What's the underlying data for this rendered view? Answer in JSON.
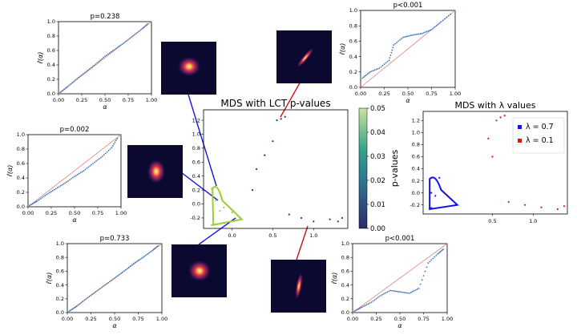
{
  "chart_data": [
    {
      "id": "pp_top_left",
      "type": "scatter",
      "title": "p=0.238",
      "xlabel": "α",
      "ylabel": "r̂(α)",
      "xlim": [
        0,
        1
      ],
      "ylim": [
        0,
        1
      ],
      "xticks": [
        "0.00",
        "0.25",
        "0.50",
        "0.75",
        "1.00"
      ],
      "yticks": [
        "0.0",
        "0.2",
        "0.4",
        "0.6",
        "0.8",
        "1.0"
      ],
      "series": [
        {
          "color": "#3b6fb5",
          "x": [
            0.02,
            0.1,
            0.2,
            0.3,
            0.4,
            0.5,
            0.6,
            0.7,
            0.8,
            0.9,
            0.97
          ],
          "y": [
            0.02,
            0.1,
            0.21,
            0.31,
            0.41,
            0.52,
            0.61,
            0.7,
            0.8,
            0.9,
            0.98
          ]
        }
      ]
    },
    {
      "id": "pp_mid_left",
      "type": "scatter",
      "title": "p=0.002",
      "xlabel": "α",
      "ylabel": "r̂(α)",
      "xlim": [
        0,
        1
      ],
      "ylim": [
        0,
        1
      ],
      "xticks": [
        "0.00",
        "0.25",
        "0.50",
        "0.75",
        "1.00"
      ],
      "yticks": [
        "0.0",
        "0.2",
        "0.4",
        "0.6",
        "0.8",
        "1.0"
      ],
      "series": [
        {
          "color": "#3b6fb5",
          "x": [
            0.02,
            0.1,
            0.2,
            0.3,
            0.4,
            0.5,
            0.6,
            0.7,
            0.8,
            0.9,
            0.97
          ],
          "y": [
            0.02,
            0.08,
            0.17,
            0.25,
            0.33,
            0.42,
            0.5,
            0.6,
            0.7,
            0.82,
            0.97
          ]
        }
      ]
    },
    {
      "id": "pp_bottom_left",
      "type": "scatter",
      "title": "p=0.733",
      "xlabel": "α",
      "ylabel": "r̂(α)",
      "xlim": [
        0,
        1
      ],
      "ylim": [
        0,
        1
      ],
      "xticks": [
        "0.00",
        "0.25",
        "0.50",
        "0.75",
        "1.00"
      ],
      "yticks": [
        "0.0",
        "0.2",
        "0.4",
        "0.6",
        "0.8",
        "1.0"
      ],
      "series": [
        {
          "color": "#3b6fb5",
          "x": [
            0.02,
            0.1,
            0.2,
            0.3,
            0.4,
            0.5,
            0.6,
            0.7,
            0.8,
            0.9,
            0.97
          ],
          "y": [
            0.02,
            0.09,
            0.2,
            0.3,
            0.4,
            0.5,
            0.6,
            0.71,
            0.8,
            0.9,
            0.98
          ]
        }
      ]
    },
    {
      "id": "pp_top_right",
      "type": "scatter",
      "title": "p<0.001",
      "xlabel": "α",
      "ylabel": "r̂(α)",
      "xlim": [
        0,
        1
      ],
      "ylim": [
        0,
        1
      ],
      "xticks": [
        "0.00",
        "0.25",
        "0.50",
        "0.75",
        "1.00"
      ],
      "yticks": [
        "0.0",
        "0.2",
        "0.4",
        "0.6",
        "0.8",
        "1.0"
      ],
      "series": [
        {
          "color": "#3b6fb5",
          "x": [
            0.02,
            0.1,
            0.2,
            0.3,
            0.35,
            0.45,
            0.55,
            0.65,
            0.75,
            0.85,
            0.97
          ],
          "y": [
            0.12,
            0.2,
            0.25,
            0.35,
            0.55,
            0.65,
            0.68,
            0.7,
            0.75,
            0.85,
            0.97
          ]
        }
      ]
    },
    {
      "id": "pp_bottom_right",
      "type": "scatter",
      "title": "p<0.001",
      "xlabel": "α",
      "ylabel": "r̂(α)",
      "xlim": [
        0,
        1
      ],
      "ylim": [
        0,
        1
      ],
      "xticks": [
        "0.00",
        "0.25",
        "0.50",
        "0.75",
        "1.00"
      ],
      "yticks": [
        "0.0",
        "0.2",
        "0.4",
        "0.6",
        "0.8",
        "1.0"
      ],
      "series": [
        {
          "color": "#3b6fb5",
          "x": [
            0.02,
            0.1,
            0.2,
            0.3,
            0.4,
            0.5,
            0.6,
            0.7,
            0.8,
            0.9,
            0.97
          ],
          "y": [
            0.02,
            0.08,
            0.15,
            0.25,
            0.32,
            0.3,
            0.28,
            0.35,
            0.72,
            0.85,
            0.93
          ]
        }
      ]
    },
    {
      "id": "mds_lct",
      "type": "scatter",
      "title": "MDS with LCT p-values",
      "xlim": [
        -0.35,
        1.42
      ],
      "ylim": [
        -0.35,
        1.35
      ],
      "xticks": [
        "0.0",
        "0.5",
        "1.0"
      ],
      "yticks": [
        "-0.2",
        "0.0",
        "0.2",
        "0.4",
        "0.6",
        "0.8",
        "1.0",
        "1.2"
      ],
      "colorbar": {
        "label": "p-values",
        "ticks": [
          "0.00",
          "0.01",
          "0.02",
          "0.03",
          "0.04",
          "0.05"
        ],
        "range": [
          0,
          0.05
        ]
      },
      "series": [
        {
          "color": "#9acd32",
          "x": [
            -0.25,
            -0.2,
            -0.1,
            0.0,
            0.1,
            -0.15,
            -0.25
          ],
          "y": [
            0.22,
            0.05,
            -0.05,
            -0.12,
            -0.2,
            -0.1,
            -0.3
          ]
        },
        {
          "color": "#2b2f6b",
          "x": [
            0.55,
            0.6,
            0.65,
            0.5,
            0.4,
            0.3,
            0.25,
            0.7,
            0.85,
            1.0,
            1.2,
            1.35,
            1.3
          ],
          "y": [
            1.2,
            1.22,
            1.25,
            0.9,
            0.7,
            0.5,
            0.2,
            -0.15,
            -0.2,
            -0.25,
            -0.22,
            -0.2,
            -0.25
          ]
        }
      ]
    },
    {
      "id": "mds_lambda",
      "type": "scatter",
      "title": "MDS with λ values",
      "xlim": [
        -0.35,
        1.42
      ],
      "ylim": [
        -0.35,
        1.35
      ],
      "xticks": [
        "0.5",
        "1.0"
      ],
      "yticks": [
        "-0.2",
        "0.0",
        "0.2",
        "0.4",
        "0.6",
        "0.8",
        "1.0",
        "1.2"
      ],
      "legend": {
        "placement": "top-right",
        "entries": [
          "λ = 0.7",
          "λ = 0.1"
        ]
      },
      "series": [
        {
          "name": "λ = 0.7",
          "color": "#1414e0",
          "x": [
            -0.25,
            -0.15,
            0.05,
            -0.2,
            -0.25
          ],
          "y": [
            0.0,
            0.25,
            -0.2,
            -0.05,
            -0.25
          ]
        },
        {
          "name": "λ = 0.1",
          "color": "#e01414",
          "x": [
            0.55,
            0.6,
            0.65,
            0.45,
            0.5,
            0.7,
            0.9,
            1.1,
            1.3,
            1.38
          ],
          "y": [
            1.2,
            1.25,
            1.28,
            0.9,
            0.6,
            -0.15,
            -0.2,
            -0.24,
            -0.27,
            -0.22
          ]
        }
      ]
    }
  ],
  "colors": {
    "blue_line": "#1414e0",
    "red_line": "#d01010",
    "green_highlight": "#9acd32",
    "scatter_blue": "#3b6fb5",
    "diag": "#e08080"
  }
}
